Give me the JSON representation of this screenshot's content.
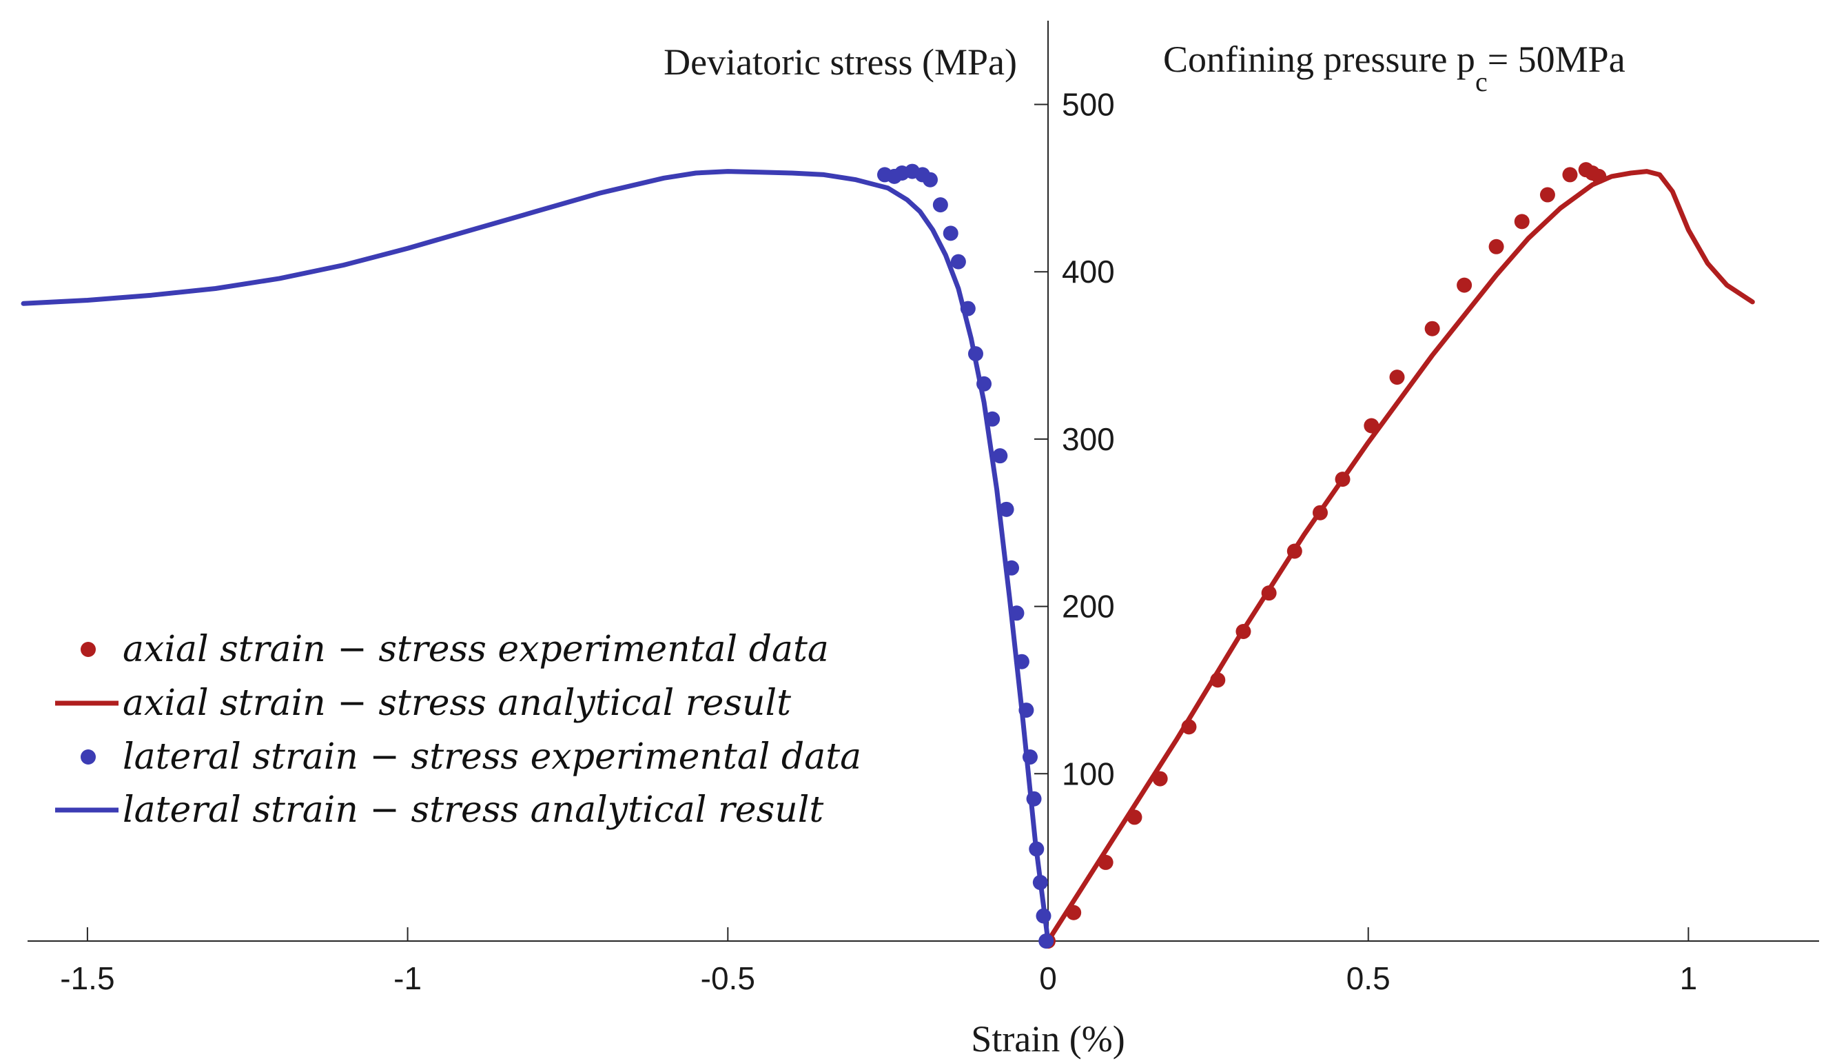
{
  "chart_data": {
    "type": "scatter",
    "title": "",
    "xlabel": "Strain (%)",
    "ylabel": "Deviatoric stress (MPa)",
    "annotation": {
      "prefix": "Confining pressure p",
      "subscript": "c",
      "suffix": "= 50MPa"
    },
    "xlim": [
      -1.6,
      1.2
    ],
    "ylim": [
      0,
      550
    ],
    "xticks": [
      -1.5,
      -1,
      -0.5,
      0,
      0.5,
      1
    ],
    "xtick_labels": [
      "-1.5",
      "-1",
      "-0.5",
      "0",
      "0.5",
      "1"
    ],
    "yticks": [
      100,
      200,
      300,
      400,
      500
    ],
    "ytick_labels": [
      "100",
      "200",
      "300",
      "400",
      "500"
    ],
    "grid": false,
    "legend_position": "lower-left",
    "series": [
      {
        "name": "axial strain − stress experimental data",
        "kind": "markers",
        "color": "#b01e1e",
        "x": [
          0.0,
          0.04,
          0.09,
          0.135,
          0.175,
          0.22,
          0.265,
          0.305,
          0.345,
          0.385,
          0.425,
          0.46,
          0.505,
          0.545,
          0.6,
          0.65,
          0.7,
          0.74,
          0.78,
          0.815,
          0.84,
          0.85,
          0.86
        ],
        "y": [
          0,
          17,
          47,
          74,
          97,
          128,
          156,
          185,
          208,
          233,
          256,
          276,
          308,
          337,
          366,
          392,
          415,
          430,
          446,
          458,
          461,
          459,
          457
        ]
      },
      {
        "name": "axial strain − stress analytical result",
        "kind": "line",
        "color": "#b01e1e",
        "x": [
          0.0,
          0.05,
          0.1,
          0.2,
          0.3,
          0.4,
          0.5,
          0.6,
          0.7,
          0.75,
          0.8,
          0.85,
          0.88,
          0.91,
          0.935,
          0.955,
          0.975,
          1.0,
          1.03,
          1.06,
          1.1
        ],
        "y": [
          0,
          30,
          60,
          120,
          183,
          243,
          298,
          350,
          398,
          420,
          438,
          452,
          457,
          459,
          460,
          458,
          448,
          425,
          405,
          392,
          382
        ]
      },
      {
        "name": "lateral strain − stress experimental data",
        "kind": "markers",
        "color": "#3c3cb4",
        "x": [
          -0.003,
          -0.007,
          -0.012,
          -0.018,
          -0.022,
          -0.028,
          -0.034,
          -0.041,
          -0.049,
          -0.057,
          -0.065,
          -0.075,
          -0.087,
          -0.1,
          -0.113,
          -0.125,
          -0.14,
          -0.152,
          -0.168,
          -0.184,
          -0.196,
          -0.212,
          -0.228,
          -0.24,
          -0.255
        ],
        "y": [
          0,
          15,
          35,
          55,
          85,
          110,
          138,
          167,
          196,
          223,
          258,
          290,
          312,
          333,
          351,
          378,
          406,
          423,
          440,
          455,
          458,
          460,
          459,
          457,
          458
        ]
      },
      {
        "name": "lateral strain − stress analytical result",
        "kind": "line",
        "color": "#3c3cb4",
        "x": [
          0.0,
          -0.02,
          -0.04,
          -0.06,
          -0.08,
          -0.1,
          -0.12,
          -0.14,
          -0.16,
          -0.18,
          -0.2,
          -0.22,
          -0.25,
          -0.3,
          -0.35,
          -0.4,
          -0.45,
          -0.5,
          -0.55,
          -0.6,
          -0.7,
          -0.8,
          -0.9,
          -1.0,
          -1.1,
          -1.2,
          -1.3,
          -1.4,
          -1.5,
          -1.6
        ],
        "y": [
          0,
          60,
          135,
          205,
          270,
          322,
          360,
          390,
          410,
          425,
          436,
          443,
          450,
          455,
          458,
          459,
          459.5,
          460,
          459,
          456,
          447,
          436,
          425,
          414,
          404,
          396,
          390,
          386,
          383,
          381
        ]
      }
    ]
  }
}
